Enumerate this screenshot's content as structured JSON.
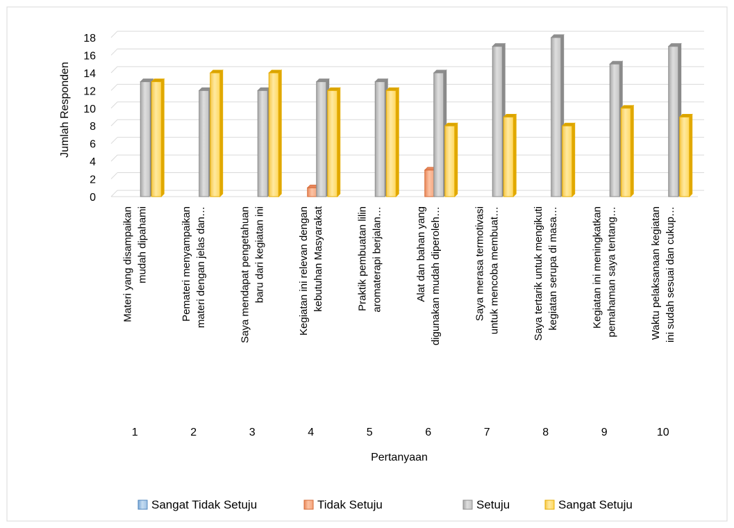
{
  "chart_data": {
    "type": "bar",
    "xlabel": "Pertanyaan",
    "ylabel": "Jumlah Responden",
    "ylim": [
      0,
      18
    ],
    "yticks": [
      0,
      2,
      4,
      6,
      8,
      10,
      12,
      14,
      16,
      18
    ],
    "grid": true,
    "legend_position": "bottom",
    "categories": [
      "1",
      "2",
      "3",
      "4",
      "5",
      "6",
      "7",
      "8",
      "9",
      "10"
    ],
    "category_descriptions": [
      [
        "Materi yang disampaikan",
        "mudah dipahami"
      ],
      [
        "Pemateri menyampaikan",
        "materi dengan jelas dan…"
      ],
      [
        "Saya mendapat pengetahuan",
        "baru dari kegiatan ini"
      ],
      [
        "Kegiatan ini relevan dengan",
        "kebutuhan Masyarakat"
      ],
      [
        "Praktik pembuatan lilin",
        "aromaterapi berjalan…"
      ],
      [
        "Alat dan bahan yang",
        "digunakan mudah diperoleh…"
      ],
      [
        "Saya merasa termotivasi",
        "untuk mencoba membuat…"
      ],
      [
        "Saya tertarik untuk mengikuti",
        "kegiatan serupa di masa…"
      ],
      [
        "Kegiatan ini meningkatkan",
        "pemahaman saya tentang…"
      ],
      [
        "Waktu pelaksanaan kegiatan",
        "ini sudah sesuai dan cukup…"
      ]
    ],
    "series": [
      {
        "name": "Sangat Tidak Setuju",
        "color": "#5b9bd5",
        "values": [
          0,
          0,
          0,
          0,
          0,
          0,
          0,
          0,
          0,
          0
        ]
      },
      {
        "name": "Tidak Setuju",
        "color": "#ed7d31",
        "values": [
          0,
          0,
          0,
          1,
          0,
          3,
          0,
          0,
          0,
          0
        ]
      },
      {
        "name": "Setuju",
        "color": "#a5a5a5",
        "values": [
          13,
          12,
          12,
          13,
          13,
          14,
          17,
          18,
          15,
          17
        ]
      },
      {
        "name": "Sangat Setuju",
        "color": "#ffc000",
        "values": [
          13,
          14,
          14,
          12,
          12,
          8,
          9,
          8,
          10,
          9
        ]
      }
    ]
  }
}
